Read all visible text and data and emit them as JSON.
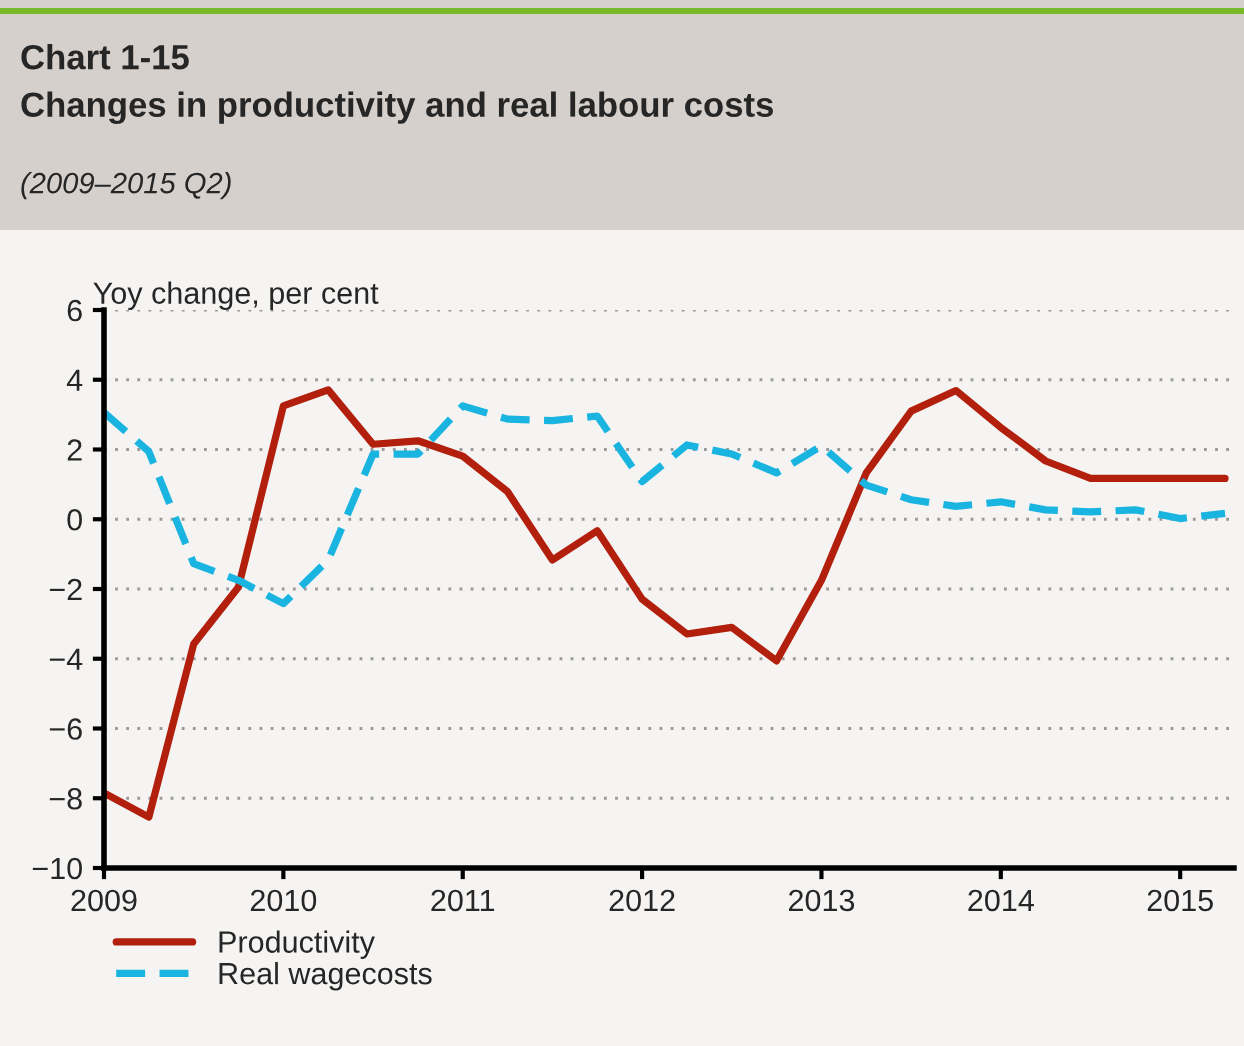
{
  "chart_data": {
    "type": "line",
    "title": "Chart 1-15\nChanges in productivity and real labour costs",
    "subtitle": "(2009–2015 Q2)",
    "ylabel": "Yoy change, per cent",
    "x": [
      2009.0,
      2009.25,
      2009.5,
      2009.75,
      2010.0,
      2010.25,
      2010.5,
      2010.75,
      2011.0,
      2011.25,
      2011.5,
      2011.75,
      2012.0,
      2012.25,
      2012.5,
      2012.75,
      2013.0,
      2013.25,
      2013.5,
      2013.75,
      2014.0,
      2014.25,
      2014.5,
      2014.75,
      2015.0,
      2015.25
    ],
    "series": [
      {
        "name": "Productivity",
        "color": "#b21f0c",
        "line_style": "solid",
        "values": [
          -7.85,
          -8.54,
          -3.58,
          -1.94,
          3.25,
          3.71,
          2.15,
          2.25,
          1.81,
          0.79,
          -1.17,
          -0.33,
          -2.29,
          -3.29,
          -3.1,
          -4.06,
          -1.75,
          1.33,
          3.1,
          3.69,
          2.63,
          1.67,
          1.17,
          1.17,
          1.17,
          1.17
        ]
      },
      {
        "name": "Real wagecosts",
        "color": "#19b4e0",
        "line_style": "dashed",
        "values": [
          3.06,
          1.94,
          -1.27,
          -1.75,
          -2.42,
          -1.17,
          1.87,
          1.87,
          3.25,
          2.87,
          2.83,
          2.96,
          1.08,
          2.13,
          1.87,
          1.33,
          2.1,
          0.98,
          0.56,
          0.37,
          0.5,
          0.27,
          0.21,
          0.27,
          0.02,
          0.17
        ]
      }
    ],
    "xlim": [
      2009,
      2015.3
    ],
    "xticks": [
      2009,
      2010,
      2011,
      2012,
      2013,
      2014,
      2015
    ],
    "ylim": [
      -10,
      6
    ],
    "yticks": [
      {
        "value": -10,
        "label": "−10"
      },
      {
        "value": -8,
        "label": "−8"
      },
      {
        "value": -6,
        "label": "−6"
      },
      {
        "value": -4,
        "label": "−4"
      },
      {
        "value": -2,
        "label": "−2"
      },
      0,
      2,
      4,
      6
    ],
    "grid": "y",
    "legend": "bottom left",
    "marker": "none"
  }
}
